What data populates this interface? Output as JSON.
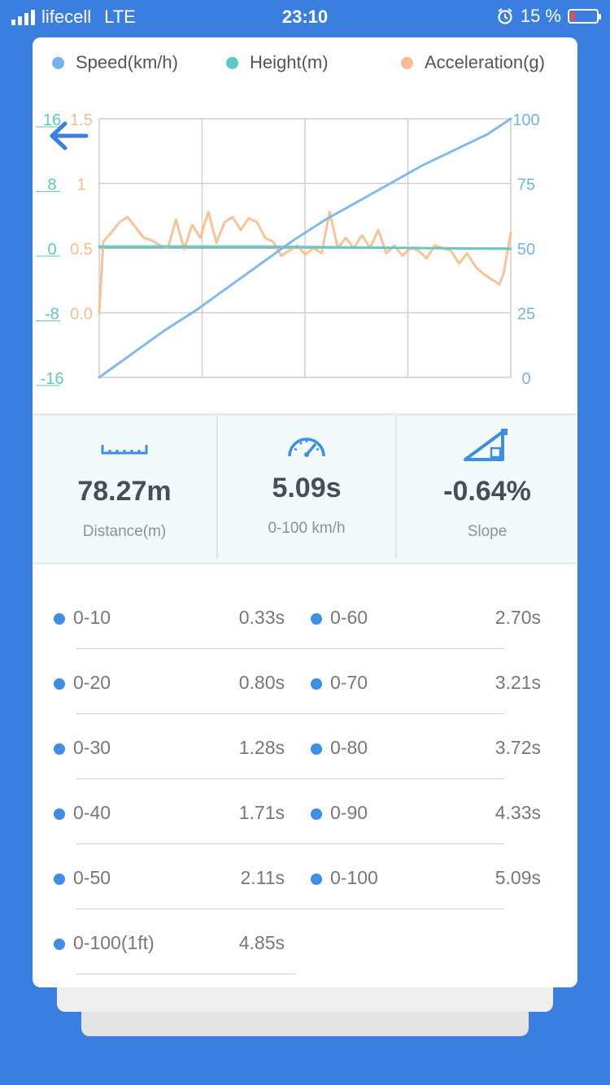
{
  "status_bar": {
    "carrier": "lifecell",
    "network": "LTE",
    "time": "23:10",
    "battery_percent": "15 %",
    "battery_level": 0.15
  },
  "legend": {
    "speed": "Speed(km/h)",
    "height": "Height(m)",
    "acceleration": "Acceleration(g)"
  },
  "colors": {
    "speed": "#74b2ee",
    "height": "#5ec8c2",
    "acceleration": "#f7bd8c",
    "accent": "#3a7fe0",
    "bullet": "#3c8fe2"
  },
  "chart_data": {
    "type": "line",
    "title": "",
    "left_axis_height": {
      "ticks": [
        "16",
        "8",
        "0",
        "-8",
        "-16"
      ],
      "ylim": [
        -16,
        16
      ]
    },
    "left_axis_acceleration": {
      "ticks": [
        "1.5",
        "1",
        "0.5",
        "0.0"
      ],
      "ylim": [
        -0.5,
        1.5
      ]
    },
    "right_axis_speed": {
      "ticks": [
        "100",
        "75",
        "50",
        "25",
        "0"
      ],
      "ylim": [
        0,
        100
      ]
    },
    "grid": true,
    "series": [
      {
        "name": "Speed(km/h)",
        "axis": "right",
        "x": [
          0,
          0.4,
          0.8,
          1.2,
          1.6,
          2.0,
          2.4,
          2.8,
          3.2,
          3.6,
          4.0,
          4.4,
          4.8,
          5.09
        ],
        "values": [
          0,
          9,
          18,
          26,
          35,
          44,
          53,
          61,
          68,
          75,
          82,
          88,
          94,
          100
        ]
      },
      {
        "name": "Height(m)",
        "axis": "left_height",
        "x": [
          0,
          1,
          2,
          3,
          4,
          5.09
        ],
        "values": [
          0.2,
          0.2,
          0.2,
          0.1,
          0,
          -0.1
        ]
      },
      {
        "name": "Acceleration(g)",
        "axis": "left_acceleration",
        "x": [
          0,
          0.05,
          0.15,
          0.25,
          0.35,
          0.45,
          0.55,
          0.65,
          0.75,
          0.85,
          0.95,
          1.05,
          1.15,
          1.25,
          1.35,
          1.45,
          1.55,
          1.65,
          1.75,
          1.85,
          1.95,
          2.05,
          2.15,
          2.25,
          2.35,
          2.45,
          2.55,
          2.65,
          2.75,
          2.85,
          2.95,
          3.05,
          3.15,
          3.25,
          3.35,
          3.45,
          3.55,
          3.65,
          3.75,
          3.85,
          3.95,
          4.05,
          4.15,
          4.25,
          4.35,
          4.45,
          4.55,
          4.65,
          4.75,
          4.85,
          4.95,
          5.0,
          5.09
        ],
        "values": [
          0.0,
          0.55,
          0.62,
          0.7,
          0.74,
          0.66,
          0.58,
          0.56,
          0.52,
          0.5,
          0.72,
          0.49,
          0.68,
          0.58,
          0.78,
          0.54,
          0.7,
          0.74,
          0.64,
          0.73,
          0.7,
          0.58,
          0.55,
          0.44,
          0.48,
          0.52,
          0.45,
          0.5,
          0.46,
          0.78,
          0.5,
          0.58,
          0.5,
          0.6,
          0.5,
          0.64,
          0.46,
          0.52,
          0.44,
          0.5,
          0.48,
          0.42,
          0.52,
          0.5,
          0.48,
          0.38,
          0.46,
          0.36,
          0.3,
          0.26,
          0.22,
          0.3,
          0.62
        ]
      }
    ]
  },
  "stats": [
    {
      "value": "78.27m",
      "label": "Distance(m)",
      "icon": "ruler-icon"
    },
    {
      "value": "5.09s",
      "label": "0-100 km/h",
      "icon": "speedometer-icon"
    },
    {
      "value": "-0.64%",
      "label": "Slope",
      "icon": "slope-icon"
    }
  ],
  "results_left": [
    {
      "label": "0-10",
      "value": "0.33s"
    },
    {
      "label": "0-20",
      "value": "0.80s"
    },
    {
      "label": "0-30",
      "value": "1.28s"
    },
    {
      "label": "0-40",
      "value": "1.71s"
    },
    {
      "label": "0-50",
      "value": "2.11s"
    },
    {
      "label": "0-100(1ft)",
      "value": "4.85s"
    }
  ],
  "results_right": [
    {
      "label": "0-60",
      "value": "2.70s"
    },
    {
      "label": "0-70",
      "value": "3.21s"
    },
    {
      "label": "0-80",
      "value": "3.72s"
    },
    {
      "label": "0-90",
      "value": "4.33s"
    },
    {
      "label": "0-100",
      "value": "5.09s"
    }
  ]
}
